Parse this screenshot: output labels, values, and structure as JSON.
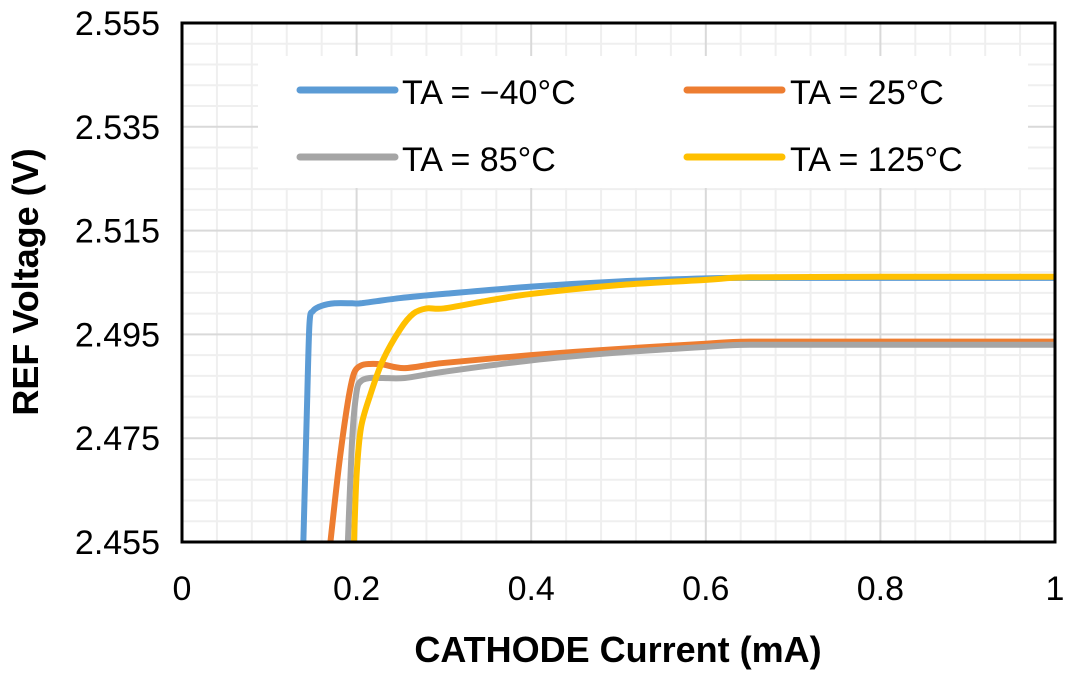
{
  "chart_data": {
    "type": "line",
    "title": "",
    "xlabel": "CATHODE Current (mA)",
    "ylabel": "REF Voltage (V)",
    "xlim": [
      0,
      1
    ],
    "ylim": [
      2.455,
      2.555
    ],
    "x_ticks": [
      0,
      0.2,
      0.4,
      0.6,
      0.8,
      1
    ],
    "x_tick_labels": [
      "0",
      "0.2",
      "0.4",
      "0.6",
      "0.8",
      "1"
    ],
    "y_ticks": [
      2.455,
      2.475,
      2.495,
      2.515,
      2.535,
      2.555
    ],
    "y_tick_labels": [
      "2.455",
      "2.475",
      "2.495",
      "2.515",
      "2.535",
      "2.555"
    ],
    "x_minor_step": 0.04,
    "y_minor_step": 0.004,
    "grid": true,
    "legend_position": "top-inside",
    "series": [
      {
        "name": "TA = −40°C",
        "color": "#5B9BD5",
        "x": [
          0.139,
          0.143,
          0.146,
          0.15,
          0.16,
          0.175,
          0.195,
          0.205,
          0.25,
          0.3,
          0.4,
          0.5,
          0.6,
          0.65,
          0.8,
          1.0
        ],
        "y": [
          2.455,
          2.48,
          2.497,
          2.4995,
          2.5005,
          2.501,
          2.501,
          2.501,
          2.502,
          2.5028,
          2.5042,
          2.5052,
          2.5058,
          2.5059,
          2.5059,
          2.5059
        ]
      },
      {
        "name": "TA = 25°C",
        "color": "#ED7D31",
        "x": [
          0.17,
          0.18,
          0.19,
          0.197,
          0.205,
          0.215,
          0.23,
          0.255,
          0.3,
          0.4,
          0.5,
          0.6,
          0.65,
          0.8,
          1.0
        ],
        "y": [
          2.455,
          2.47,
          2.482,
          2.4875,
          2.489,
          2.4893,
          2.4892,
          2.4885,
          2.4895,
          2.491,
          2.4922,
          2.4932,
          2.4936,
          2.4936,
          2.4936
        ]
      },
      {
        "name": "TA = 85°C",
        "color": "#A5A5A5",
        "x": [
          0.19,
          0.195,
          0.2,
          0.205,
          0.215,
          0.23,
          0.255,
          0.3,
          0.4,
          0.5,
          0.6,
          0.65,
          0.8,
          1.0
        ],
        "y": [
          2.455,
          2.475,
          2.484,
          2.486,
          2.4866,
          2.4866,
          2.4866,
          2.4878,
          2.49,
          2.4915,
          2.4926,
          2.493,
          2.493,
          2.493
        ]
      },
      {
        "name": "TA = 125°C",
        "color": "#FFC000",
        "x": [
          0.197,
          0.2,
          0.205,
          0.215,
          0.23,
          0.25,
          0.265,
          0.28,
          0.3,
          0.35,
          0.4,
          0.5,
          0.6,
          0.65,
          0.8,
          1.0
        ],
        "y": [
          2.455,
          2.468,
          2.477,
          2.483,
          2.49,
          2.496,
          2.499,
          2.5,
          2.5,
          2.5015,
          2.5028,
          2.5045,
          2.5055,
          2.506,
          2.5061,
          2.5061
        ]
      }
    ]
  }
}
